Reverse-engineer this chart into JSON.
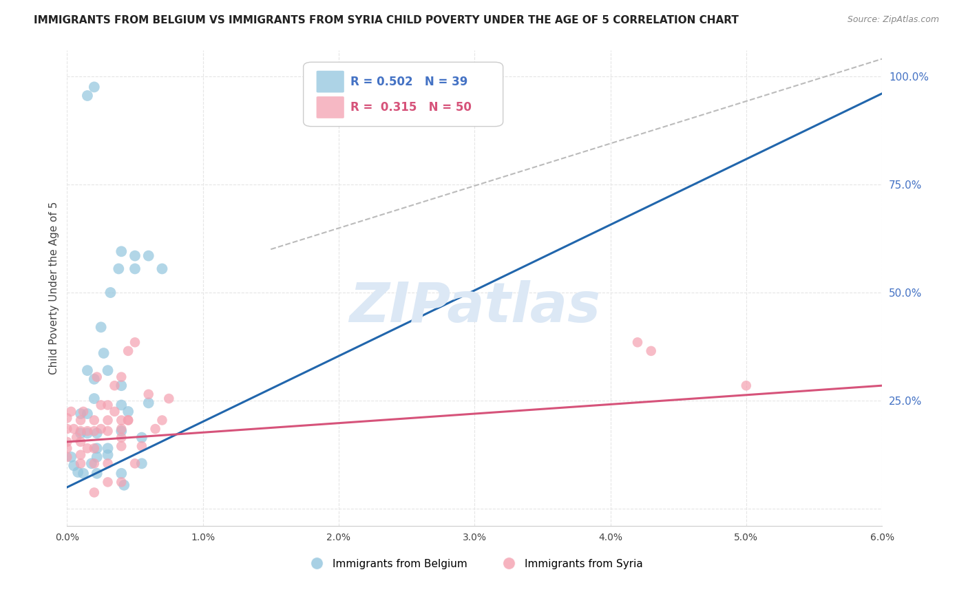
{
  "title": "IMMIGRANTS FROM BELGIUM VS IMMIGRANTS FROM SYRIA CHILD POVERTY UNDER THE AGE OF 5 CORRELATION CHART",
  "source": "Source: ZipAtlas.com",
  "ylabel": "Child Poverty Under the Age of 5",
  "R_belgium": "0.502",
  "N_belgium": "39",
  "R_syria": "0.315",
  "N_syria": "50",
  "legend_belgium": "Immigrants from Belgium",
  "legend_syria": "Immigrants from Syria",
  "blue_color": "#92c5de",
  "pink_color": "#f4a0b0",
  "blue_line_color": "#2166ac",
  "pink_line_color": "#d6537a",
  "dashed_color": "#bbbbbb",
  "watermark": "ZIPatlas",
  "watermark_color": "#dce8f5",
  "background_color": "#ffffff",
  "grid_color": "#e5e5e5",
  "xlim": [
    0.0,
    0.06
  ],
  "ylim": [
    -0.04,
    1.06
  ],
  "yticks": [
    0.0,
    0.25,
    0.5,
    0.75,
    1.0
  ],
  "ytick_labels_right": [
    "",
    "25.0%",
    "50.0%",
    "75.0%",
    "100.0%"
  ],
  "xticks": [
    0.0,
    0.01,
    0.02,
    0.03,
    0.04,
    0.05,
    0.06
  ],
  "xtick_labels": [
    "0.0%",
    "1.0%",
    "2.0%",
    "3.0%",
    "4.0%",
    "5.0%",
    "6.0%"
  ],
  "trendline_blue": [
    [
      0.0,
      0.05
    ],
    [
      0.06,
      0.96
    ]
  ],
  "trendline_pink": [
    [
      0.0,
      0.155
    ],
    [
      0.06,
      0.285
    ]
  ],
  "dashed_line": [
    [
      0.015,
      0.6
    ],
    [
      0.06,
      1.04
    ]
  ],
  "scatter_blue": [
    [
      0.0003,
      0.12
    ],
    [
      0.0005,
      0.1
    ],
    [
      0.0008,
      0.085
    ],
    [
      0.001,
      0.22
    ],
    [
      0.001,
      0.175
    ],
    [
      0.0015,
      0.32
    ],
    [
      0.0015,
      0.22
    ],
    [
      0.0015,
      0.175
    ],
    [
      0.002,
      0.3
    ],
    [
      0.002,
      0.255
    ],
    [
      0.0022,
      0.175
    ],
    [
      0.0022,
      0.14
    ],
    [
      0.0022,
      0.12
    ],
    [
      0.0025,
      0.42
    ],
    [
      0.0027,
      0.36
    ],
    [
      0.003,
      0.32
    ],
    [
      0.003,
      0.14
    ],
    [
      0.003,
      0.125
    ],
    [
      0.0032,
      0.5
    ],
    [
      0.004,
      0.595
    ],
    [
      0.0038,
      0.555
    ],
    [
      0.004,
      0.285
    ],
    [
      0.004,
      0.24
    ],
    [
      0.004,
      0.18
    ],
    [
      0.004,
      0.082
    ],
    [
      0.0042,
      0.055
    ],
    [
      0.0045,
      0.225
    ],
    [
      0.005,
      0.585
    ],
    [
      0.005,
      0.555
    ],
    [
      0.0055,
      0.165
    ],
    [
      0.0055,
      0.105
    ],
    [
      0.006,
      0.245
    ],
    [
      0.006,
      0.585
    ],
    [
      0.007,
      0.555
    ],
    [
      0.0015,
      0.955
    ],
    [
      0.002,
      0.975
    ],
    [
      0.0018,
      0.105
    ],
    [
      0.0012,
      0.082
    ],
    [
      0.0022,
      0.082
    ]
  ],
  "scatter_pink": [
    [
      0.0,
      0.21
    ],
    [
      0.0,
      0.185
    ],
    [
      0.0,
      0.155
    ],
    [
      0.0,
      0.14
    ],
    [
      0.0,
      0.12
    ],
    [
      0.0003,
      0.225
    ],
    [
      0.0005,
      0.185
    ],
    [
      0.0007,
      0.165
    ],
    [
      0.001,
      0.205
    ],
    [
      0.001,
      0.18
    ],
    [
      0.001,
      0.155
    ],
    [
      0.001,
      0.125
    ],
    [
      0.001,
      0.105
    ],
    [
      0.0012,
      0.225
    ],
    [
      0.0015,
      0.18
    ],
    [
      0.0015,
      0.14
    ],
    [
      0.002,
      0.205
    ],
    [
      0.002,
      0.18
    ],
    [
      0.002,
      0.14
    ],
    [
      0.002,
      0.105
    ],
    [
      0.0022,
      0.305
    ],
    [
      0.0025,
      0.24
    ],
    [
      0.0025,
      0.185
    ],
    [
      0.003,
      0.24
    ],
    [
      0.003,
      0.205
    ],
    [
      0.003,
      0.18
    ],
    [
      0.003,
      0.105
    ],
    [
      0.003,
      0.062
    ],
    [
      0.0035,
      0.285
    ],
    [
      0.0035,
      0.225
    ],
    [
      0.004,
      0.205
    ],
    [
      0.004,
      0.185
    ],
    [
      0.004,
      0.165
    ],
    [
      0.004,
      0.145
    ],
    [
      0.004,
      0.062
    ],
    [
      0.0045,
      0.205
    ],
    [
      0.005,
      0.105
    ],
    [
      0.004,
      0.305
    ],
    [
      0.0045,
      0.205
    ],
    [
      0.0045,
      0.365
    ],
    [
      0.005,
      0.385
    ],
    [
      0.0055,
      0.145
    ],
    [
      0.006,
      0.265
    ],
    [
      0.0065,
      0.185
    ],
    [
      0.007,
      0.205
    ],
    [
      0.0075,
      0.255
    ],
    [
      0.042,
      0.385
    ],
    [
      0.043,
      0.365
    ],
    [
      0.05,
      0.285
    ],
    [
      0.002,
      0.038
    ]
  ]
}
